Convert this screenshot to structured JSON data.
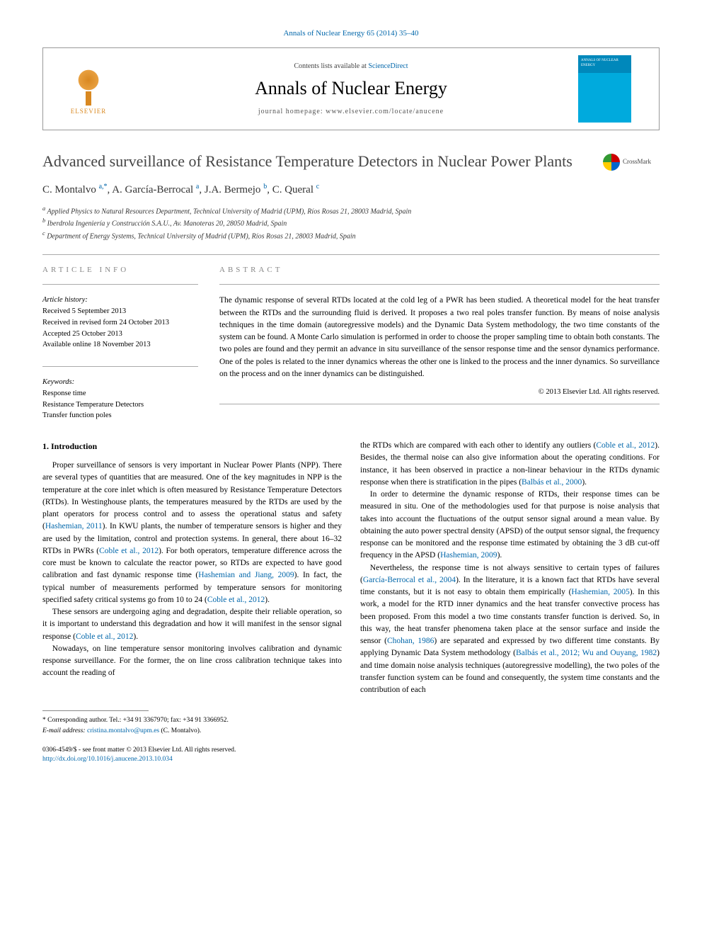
{
  "journal_ref": "Annals of Nuclear Energy 65 (2014) 35–40",
  "header": {
    "elsevier": "ELSEVIER",
    "contents_prefix": "Contents lists available at ",
    "contents_link": "ScienceDirect",
    "journal_name": "Annals of Nuclear Energy",
    "homepage_label": "journal homepage: ",
    "homepage_url": "www.elsevier.com/locate/anucene",
    "cover_text": "ANNALS OF NUCLEAR ENERGY"
  },
  "title": "Advanced surveillance of Resistance Temperature Detectors in Nuclear Power Plants",
  "crossmark": "CrossMark",
  "authors_html": "C. Montalvo <sup>a,*</sup>, A. García-Berrocal <sup>a</sup>, J.A. Bermejo <sup>b</sup>, C. Queral <sup>c</sup>",
  "affiliations": [
    "a Applied Physics to Natural Resources Department, Technical University of Madrid (UPM), Ríos Rosas 21, 28003 Madrid, Spain",
    "b Iberdrola Ingeniería y Construcción S.A.U., Av. Manoteras 20, 28050 Madrid, Spain",
    "c Department of Energy Systems, Technical University of Madrid (UPM), Ríos Rosas 21, 28003 Madrid, Spain"
  ],
  "article_info": {
    "label": "ARTICLE INFO",
    "history_label": "Article history:",
    "history": [
      "Received 5 September 2013",
      "Received in revised form 24 October 2013",
      "Accepted 25 October 2013",
      "Available online 18 November 2013"
    ],
    "keywords_label": "Keywords:",
    "keywords": [
      "Response time",
      "Resistance Temperature Detectors",
      "Transfer function poles"
    ]
  },
  "abstract": {
    "label": "ABSTRACT",
    "text": "The dynamic response of several RTDs located at the cold leg of a PWR has been studied. A theoretical model for the heat transfer between the RTDs and the surrounding fluid is derived. It proposes a two real poles transfer function. By means of noise analysis techniques in the time domain (autoregressive models) and the Dynamic Data System methodology, the two time constants of the system can be found. A Monte Carlo simulation is performed in order to choose the proper sampling time to obtain both constants. The two poles are found and they permit an advance in situ surveillance of the sensor response time and the sensor dynamics performance. One of the poles is related to the inner dynamics whereas the other one is linked to the process and the inner dynamics. So surveillance on the process and on the inner dynamics can be distinguished.",
    "copyright": "© 2013 Elsevier Ltd. All rights reserved."
  },
  "body": {
    "heading": "1. Introduction",
    "p1": "Proper surveillance of sensors is very important in Nuclear Power Plants (NPP). There are several types of quantities that are measured. One of the key magnitudes in NPP is the temperature at the core inlet which is often measured by Resistance Temperature Detectors (RTDs). In Westinghouse plants, the temperatures measured by the RTDs are used by the plant operators for process control and to assess the operational status and safety (Hashemian, 2011). In KWU plants, the number of temperature sensors is higher and they are used by the limitation, control and protection systems. In general, there about 16–32 RTDs in PWRs (Coble et al., 2012). For both operators, temperature difference across the core must be known to calculate the reactor power, so RTDs are expected to have good calibration and fast dynamic response time (Hashemian and Jiang, 2009). In fact, the typical number of measurements performed by temperature sensors for monitoring specified safety critical systems go from 10 to 24 (Coble et al., 2012).",
    "p2": "These sensors are undergoing aging and degradation, despite their reliable operation, so it is important to understand this degradation and how it will manifest in the sensor signal response (Coble et al., 2012).",
    "p3": "Nowadays, on line temperature sensor monitoring involves calibration and dynamic response surveillance. For the former, the on line cross calibration technique takes into account the reading of",
    "p4": "the RTDs which are compared with each other to identify any outliers (Coble et al., 2012). Besides, the thermal noise can also give information about the operating conditions. For instance, it has been observed in practice a non-linear behaviour in the RTDs dynamic response when there is stratification in the pipes (Balbás et al., 2000).",
    "p5": "In order to determine the dynamic response of RTDs, their response times can be measured in situ. One of the methodologies used for that purpose is noise analysis that takes into account the fluctuations of the output sensor signal around a mean value. By obtaining the auto power spectral density (APSD) of the output sensor signal, the frequency response can be monitored and the response time estimated by obtaining the 3 dB cut-off frequency in the APSD (Hashemian, 2009).",
    "p6": "Nevertheless, the response time is not always sensitive to certain types of failures (García-Berrocal et al., 2004). In the literature, it is a known fact that RTDs have several time constants, but it is not easy to obtain them empirically (Hashemian, 2005). In this work, a model for the RTD inner dynamics and the heat transfer convective process has been proposed. From this model a two time constants transfer function is derived. So, in this way, the heat transfer phenomena taken place at the sensor surface and inside the sensor (Chohan, 1986) are separated and expressed by two different time constants. By applying Dynamic Data System methodology (Balbás et al., 2012; Wu and Ouyang, 1982) and time domain noise analysis techniques (autoregressive modelling), the two poles of the transfer function system can be found and consequently, the system time constants and the contribution of each"
  },
  "footer": {
    "corr_label": "* Corresponding author. Tel.: +34 91 3367970; fax: +34 91 3366952.",
    "email_label": "E-mail address: ",
    "email": "cristina.montalvo@upm.es",
    "email_name": " (C. Montalvo).",
    "issn": "0306-4549/$ - see front matter © 2013 Elsevier Ltd. All rights reserved.",
    "doi": "http://dx.doi.org/10.1016/j.anucene.2013.10.034"
  },
  "colors": {
    "link": "#0066aa",
    "elsevier": "#d98820",
    "cover_bg": "#0088bb",
    "border": "#999999",
    "text": "#000000"
  },
  "typography": {
    "body_pt": 11.5,
    "title_pt": 22,
    "journal_pt": 26,
    "small_pt": 10
  }
}
